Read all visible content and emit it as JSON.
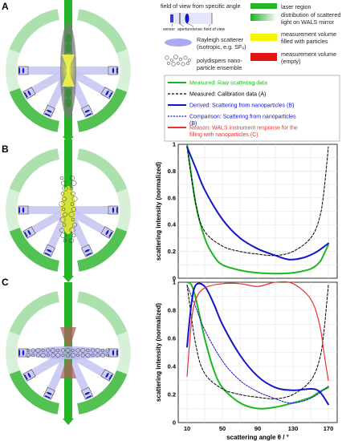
{
  "panel_labels": [
    "A",
    "B",
    "C"
  ],
  "legend": {
    "fov_title": "field of view from specific angle",
    "fov_parts": [
      "sensor",
      "aperture",
      "lense",
      "field of view"
    ],
    "rayleigh": [
      "Rayleigh scatterer",
      "(isotropic, e.g. SF₆)"
    ],
    "poly": [
      "polydispers nano-",
      "particle ensemble"
    ],
    "laser": "laser region",
    "mirror": [
      "distribution of scattered",
      "light on WALS mirror"
    ],
    "filled": [
      "measurement volume",
      "filled with particles"
    ],
    "empty": [
      "measurement volume",
      "(empty)"
    ]
  },
  "colors": {
    "green": "#1db81d",
    "black": "#000000",
    "blue": "#1414c8",
    "red": "#e83333",
    "yellow": "#f5f500",
    "laser": "#26b526"
  },
  "chart_data": [
    {
      "type": "line",
      "panel": "B",
      "xlabel": "",
      "ylabel": "scattering intensity (normalized)",
      "xlim": [
        0,
        180
      ],
      "ylim": [
        0,
        1
      ],
      "yticks": [
        "0",
        "0.2",
        "0.4",
        "0.6",
        "0.8",
        "1"
      ],
      "grid": true,
      "series": [
        {
          "name": "Measured: Raw scattering data",
          "color": "green",
          "dash": "solid",
          "x": [
            10,
            20,
            30,
            40,
            50,
            70,
            90,
            110,
            130,
            150,
            160,
            165,
            170
          ],
          "y": [
            1.0,
            0.55,
            0.3,
            0.17,
            0.1,
            0.06,
            0.04,
            0.035,
            0.04,
            0.07,
            0.12,
            0.18,
            0.25
          ]
        },
        {
          "name": "Measured: Calibration data (A)",
          "color": "black",
          "dash": "dash",
          "x": [
            10,
            20,
            30,
            50,
            70,
            90,
            110,
            130,
            150,
            160,
            165,
            170
          ],
          "y": [
            0.98,
            0.55,
            0.35,
            0.24,
            0.2,
            0.18,
            0.17,
            0.2,
            0.3,
            0.45,
            0.65,
            0.98
          ]
        },
        {
          "name": "Derived: Scattering from nanoparticles (B)",
          "color": "blue",
          "dash": "solid",
          "x": [
            10,
            20,
            30,
            50,
            70,
            90,
            110,
            125,
            140,
            155,
            170
          ],
          "y": [
            0.98,
            0.82,
            0.66,
            0.44,
            0.3,
            0.22,
            0.17,
            0.14,
            0.15,
            0.19,
            0.26
          ]
        }
      ]
    },
    {
      "type": "line",
      "panel": "C",
      "xlabel": "scattering angle θ / °",
      "ylabel": "scattering intensity (normalized)",
      "xlim": [
        0,
        180
      ],
      "ylim": [
        0,
        1
      ],
      "xticks": [
        "10",
        "50",
        "90",
        "130",
        "170"
      ],
      "yticks": [
        "0",
        "0.2",
        "0.4",
        "0.6",
        "0.8",
        "1"
      ],
      "grid": true,
      "series": [
        {
          "name": "Measured: Raw scattering data",
          "color": "green",
          "dash": "solid",
          "x": [
            10,
            15,
            20,
            30,
            40,
            50,
            70,
            90,
            110,
            130,
            150,
            160,
            170
          ],
          "y": [
            1.0,
            0.98,
            0.88,
            0.6,
            0.38,
            0.25,
            0.14,
            0.1,
            0.11,
            0.14,
            0.18,
            0.22,
            0.25
          ]
        },
        {
          "name": "Measured: Calibration data (A)",
          "color": "black",
          "dash": "dash",
          "x": [
            10,
            20,
            30,
            50,
            70,
            90,
            110,
            130,
            150,
            160,
            165,
            170
          ],
          "y": [
            0.98,
            0.55,
            0.35,
            0.24,
            0.2,
            0.18,
            0.17,
            0.2,
            0.3,
            0.45,
            0.65,
            0.98
          ]
        },
        {
          "name": "Derived: Scattering from nanoparticles (B)",
          "color": "blue",
          "dash": "solid",
          "x": [
            10,
            15,
            20,
            30,
            40,
            50,
            70,
            90,
            110,
            130,
            150,
            160,
            170
          ],
          "y": [
            0.54,
            0.85,
            0.98,
            0.97,
            0.85,
            0.7,
            0.48,
            0.33,
            0.25,
            0.23,
            0.24,
            0.22,
            0.13
          ]
        },
        {
          "name": "Comparison: Scattering from nanoparticles (B)",
          "color": "blue",
          "dash": "short",
          "x": [
            10,
            20,
            30,
            50,
            70,
            90,
            110,
            125,
            140,
            155,
            170
          ],
          "y": [
            0.98,
            0.82,
            0.66,
            0.44,
            0.3,
            0.22,
            0.17,
            0.14,
            0.15,
            0.19,
            0.26
          ]
        },
        {
          "name": "Reason: WALS instrument response for the filling with nanoparticles (C)",
          "color": "red",
          "dash": "solid",
          "x": [
            10,
            15,
            20,
            30,
            50,
            70,
            90,
            110,
            130,
            150,
            160,
            165,
            170
          ],
          "y": [
            0.33,
            0.72,
            0.88,
            0.96,
            0.99,
            0.99,
            0.97,
            1.0,
            0.99,
            0.88,
            0.7,
            0.5,
            0.3
          ]
        }
      ]
    }
  ]
}
